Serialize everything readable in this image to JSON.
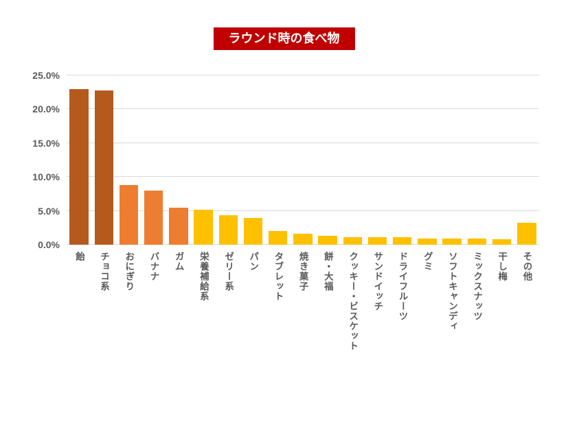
{
  "title": {
    "text": "ラウンド時の食べ物",
    "background_color": "#C00000",
    "text_color": "#FFFFFF"
  },
  "chart_data": {
    "type": "bar",
    "title": "ラウンド時の食べ物",
    "categories": [
      "飴",
      "チョコ系",
      "おにぎり",
      "バナナ",
      "ガム",
      "栄養補給系",
      "ゼリー系",
      "パン",
      "タブレット",
      "焼き菓子",
      "餅・大福",
      "クッキー・ビスケット",
      "サンドイッチ",
      "ドライフルーツ",
      "グミ",
      "ソフトキャンディ",
      "ミックスナッツ",
      "干し梅",
      "その他"
    ],
    "values": [
      23.0,
      22.8,
      8.8,
      8.0,
      5.5,
      5.2,
      4.4,
      3.9,
      2.0,
      1.6,
      1.3,
      1.1,
      1.1,
      1.1,
      0.9,
      0.9,
      0.9,
      0.8,
      3.2
    ],
    "unit": "%",
    "bar_colors": [
      "#B45A1D",
      "#B45A1D",
      "#ED7D31",
      "#ED7D31",
      "#ED7D31",
      "#FFC000",
      "#FFC000",
      "#FFC000",
      "#FFC000",
      "#FFC000",
      "#FFC000",
      "#FFC000",
      "#FFC000",
      "#FFC000",
      "#FFC000",
      "#FFC000",
      "#FFC000",
      "#FFC000",
      "#FFC000"
    ],
    "xlabel": "",
    "ylabel": "",
    "ylim": [
      0,
      25
    ],
    "ytick_interval": 5,
    "ytick_labels": [
      "0.0%",
      "5.0%",
      "10.0%",
      "15.0%",
      "20.0%",
      "25.0%"
    ],
    "grid": true,
    "gridline_color": "#D9D9D9",
    "legend": false,
    "axis_label_color": "#595959",
    "x_labels_orientation": "vertical"
  }
}
